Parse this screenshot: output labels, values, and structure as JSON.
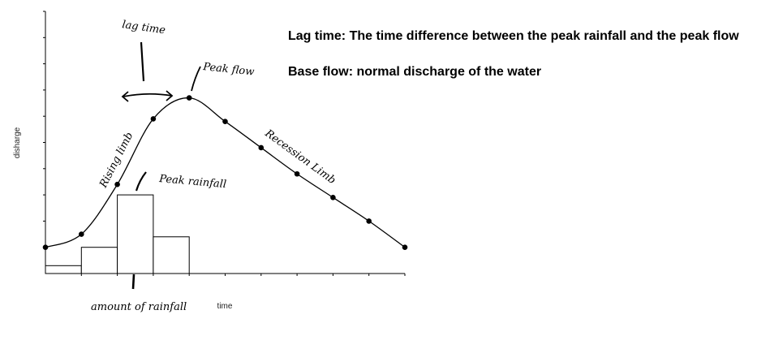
{
  "definitions": {
    "lag_time": "Lag time: The time difference between the peak rainfall and the peak flow",
    "base_flow": "Base flow: normal discharge of the water"
  },
  "chart_data": {
    "type": "line",
    "title": "",
    "xlabel": "time",
    "ylabel": "disharge",
    "x_ticks": 10,
    "y_ticks": 10,
    "xlim": [
      0,
      10
    ],
    "ylim": [
      0,
      10
    ],
    "grid": false,
    "series": [
      {
        "kind": "line",
        "x": [
          0,
          1,
          2,
          3,
          4,
          5,
          6,
          7,
          8,
          9,
          10
        ],
        "y": [
          1.0,
          1.5,
          3.4,
          5.9,
          6.7,
          5.8,
          4.8,
          3.8,
          2.9,
          2.0,
          1.0
        ]
      },
      {
        "kind": "bar",
        "x": [
          0.5,
          1.5,
          2.5,
          3.5
        ],
        "width": 1,
        "values": [
          0.3,
          1.0,
          3.0,
          1.4
        ]
      }
    ],
    "annotations": {
      "lag_time": "lag time",
      "peak_flow": "Peak flow",
      "rising_limb": "Rising limb",
      "recession_limb": "Recession Limb",
      "peak_rainfall": "Peak rainfall",
      "amount_of_rainfall": "amount of rainfall"
    }
  }
}
